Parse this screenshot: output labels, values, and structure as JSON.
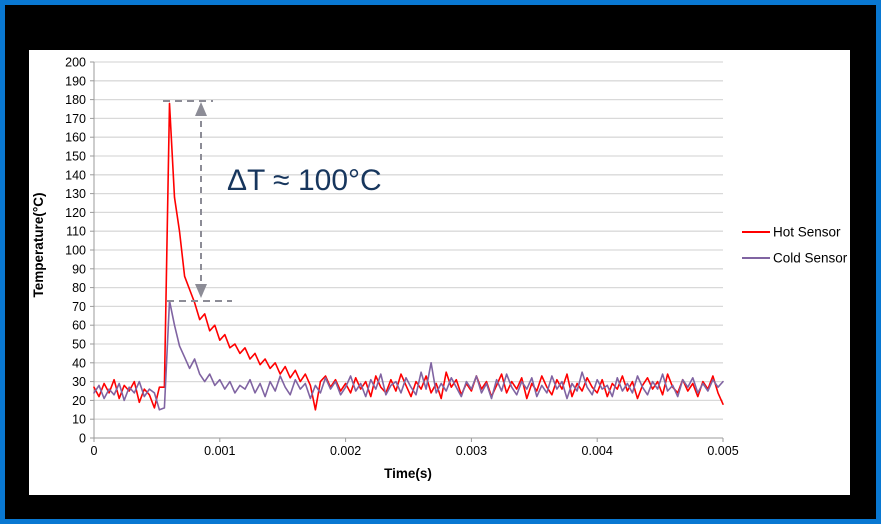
{
  "page": {
    "background_color": "#000000",
    "border_color": "#0978D2",
    "chart_background": "#FFFFFF"
  },
  "annotation": {
    "text": "ΔT ≈ 100°C",
    "color": "#17365D",
    "arrow_color": "#8C8C96"
  },
  "chart_data": {
    "type": "line",
    "title": "",
    "xlabel": "Time(s)",
    "ylabel": "Temperature(°C)",
    "xlim": [
      0,
      0.005
    ],
    "ylim": [
      0,
      200
    ],
    "y_tick_step": 10,
    "x_ticks": [
      "0",
      "0.001",
      "0.002",
      "0.003",
      "0.004",
      "0.005"
    ],
    "grid": "horizontal",
    "gridline_color": "#D9D9D9",
    "axis_color": "#9B9B9B",
    "legend_position": "right",
    "annotation_levels": {
      "hot_peak": 178,
      "cold_peak": 73,
      "delta": 100
    },
    "x_start": 0,
    "x_step": 4e-05,
    "series": [
      {
        "name": "Hot Sensor",
        "color": "#FF0000",
        "values": [
          27,
          22,
          29,
          24,
          31,
          21,
          28,
          25,
          30,
          19,
          26,
          23,
          16,
          27,
          27,
          178,
          128,
          110,
          86,
          79,
          72,
          63,
          66,
          57,
          60,
          52,
          55,
          48,
          50,
          45,
          48,
          42,
          45,
          39,
          42,
          37,
          40,
          34,
          38,
          32,
          36,
          30,
          34,
          28,
          15,
          30,
          33,
          27,
          31,
          25,
          29,
          24,
          32,
          26,
          30,
          22,
          33,
          27,
          24,
          31,
          25,
          34,
          28,
          22,
          30,
          26,
          33,
          24,
          29,
          21,
          35,
          27,
          31,
          23,
          29,
          25,
          33,
          26,
          30,
          22,
          28,
          34,
          24,
          30,
          26,
          32,
          21,
          29,
          25,
          33,
          27,
          23,
          31,
          26,
          34,
          22,
          29,
          25,
          32,
          27,
          24,
          31,
          22,
          29,
          26,
          33,
          25,
          30,
          21,
          28,
          32,
          26,
          30,
          23,
          34,
          27,
          24,
          31,
          25,
          29,
          22,
          30,
          26,
          33,
          24,
          18
        ]
      },
      {
        "name": "Cold Sensor",
        "color": "#8064A2",
        "values": [
          24,
          28,
          21,
          26,
          23,
          29,
          20,
          27,
          24,
          30,
          22,
          26,
          24,
          15,
          16,
          73,
          60,
          49,
          43,
          37,
          42,
          34,
          30,
          34,
          28,
          31,
          26,
          30,
          24,
          28,
          26,
          31,
          24,
          29,
          22,
          30,
          25,
          33,
          27,
          23,
          31,
          26,
          29,
          21,
          28,
          24,
          32,
          26,
          30,
          23,
          27,
          33,
          25,
          29,
          22,
          31,
          26,
          34,
          23,
          28,
          30,
          24,
          32,
          27,
          23,
          35,
          26,
          40,
          24,
          29,
          25,
          32,
          27,
          22,
          30,
          26,
          33,
          24,
          29,
          21,
          31,
          25,
          34,
          27,
          23,
          30,
          26,
          32,
          22,
          28,
          24,
          33,
          26,
          30,
          21,
          29,
          25,
          35,
          27,
          23,
          31,
          26,
          28,
          22,
          32,
          25,
          29,
          24,
          33,
          27,
          23,
          30,
          26,
          34,
          25,
          28,
          22,
          31,
          27,
          32,
          24,
          29,
          25,
          31,
          27,
          30
        ]
      }
    ]
  }
}
